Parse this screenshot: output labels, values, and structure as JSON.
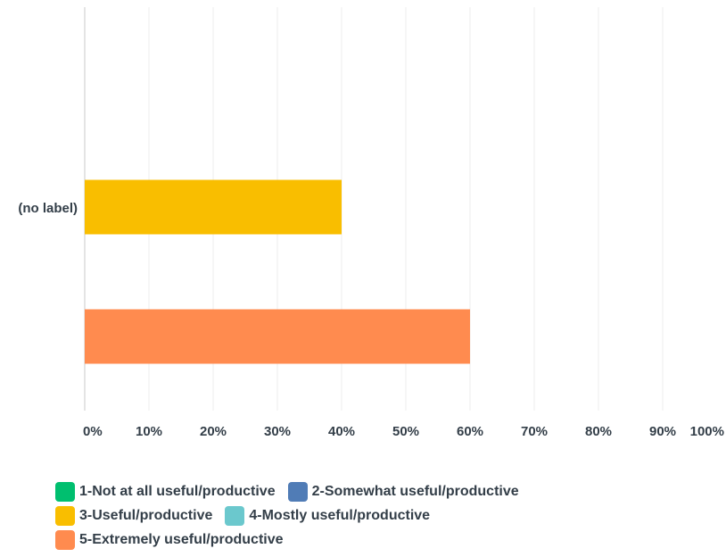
{
  "chart_data": {
    "type": "bar",
    "orientation": "horizontal",
    "categories": [
      "(no label)"
    ],
    "series": [
      {
        "name": "1-Not at all useful/productive",
        "values": [
          0
        ],
        "color": "#00bf6f"
      },
      {
        "name": "2-Somewhat useful/productive",
        "values": [
          0
        ],
        "color": "#507cb6"
      },
      {
        "name": "3-Useful/productive",
        "values": [
          40
        ],
        "color": "#f9be00"
      },
      {
        "name": "4-Mostly useful/productive",
        "values": [
          0
        ],
        "color": "#6bc8cd"
      },
      {
        "name": "5-Extremely useful/productive",
        "values": [
          60
        ],
        "color": "#ff8b4f"
      }
    ],
    "xlim": [
      0,
      100
    ],
    "ticks": [
      "0%",
      "10%",
      "20%",
      "30%",
      "40%",
      "50%",
      "60%",
      "70%",
      "80%",
      "90%",
      "100%"
    ],
    "grid": true,
    "legend_position": "bottom"
  }
}
